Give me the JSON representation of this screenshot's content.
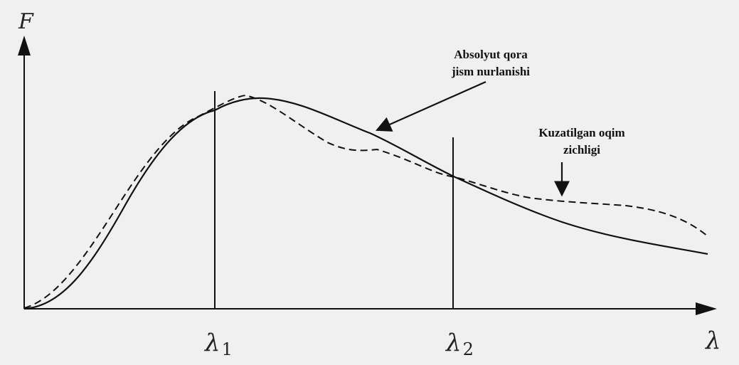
{
  "axes": {
    "y_label": "F",
    "x_label": "λ"
  },
  "markers": [
    {
      "symbol": "λ",
      "subscript": "1"
    },
    {
      "symbol": "λ",
      "subscript": "2"
    }
  ],
  "annotations": {
    "blackbody": {
      "line1": "Absolyut qora",
      "line2": "jism nurlanishi"
    },
    "observed": {
      "line1": "Kuzatilgan oqim",
      "line2": "zichligi"
    }
  },
  "curves": [
    {
      "name": "blackbody",
      "style": "solid",
      "color": "#111111"
    },
    {
      "name": "observed",
      "style": "dashed",
      "color": "#111111"
    }
  ]
}
